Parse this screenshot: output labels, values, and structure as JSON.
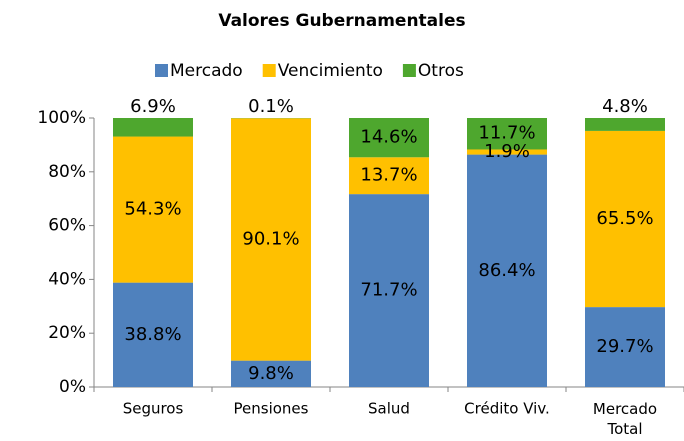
{
  "chart_data": {
    "type": "stacked_bar",
    "title": "Valores Gubernamentales",
    "categories": [
      "Seguros",
      "Pensiones",
      "Salud",
      "Crédito Viv.",
      "Mercado Total"
    ],
    "series": [
      {
        "name": "Mercado",
        "color": "#4f81bd",
        "values": [
          38.8,
          9.8,
          71.7,
          86.4,
          29.7
        ],
        "value_labels": [
          "38.8%",
          "9.8%",
          "71.7%",
          "86.4%",
          "29.7%"
        ]
      },
      {
        "name": "Vencimiento",
        "color": "#ffc000",
        "values": [
          54.3,
          90.1,
          13.7,
          1.9,
          65.5
        ],
        "value_labels": [
          "54.3%",
          "90.1%",
          "13.7%",
          "1.9%",
          "65.5%"
        ]
      },
      {
        "name": "Otros",
        "color": "#4ea72e",
        "values": [
          6.9,
          0.1,
          14.6,
          11.7,
          4.8
        ],
        "value_labels": [
          "6.9%",
          "0.1%",
          "14.6%",
          "11.7%",
          "4.8%"
        ]
      }
    ],
    "ylim": [
      0,
      100
    ],
    "yticks": [
      {
        "value": 0,
        "label": "0%"
      },
      {
        "value": 20,
        "label": "20%"
      },
      {
        "value": 40,
        "label": "40%"
      },
      {
        "value": 60,
        "label": "60%"
      },
      {
        "value": 80,
        "label": "80%"
      },
      {
        "value": 100,
        "label": "100%"
      }
    ],
    "legend": "top",
    "grid": false
  }
}
